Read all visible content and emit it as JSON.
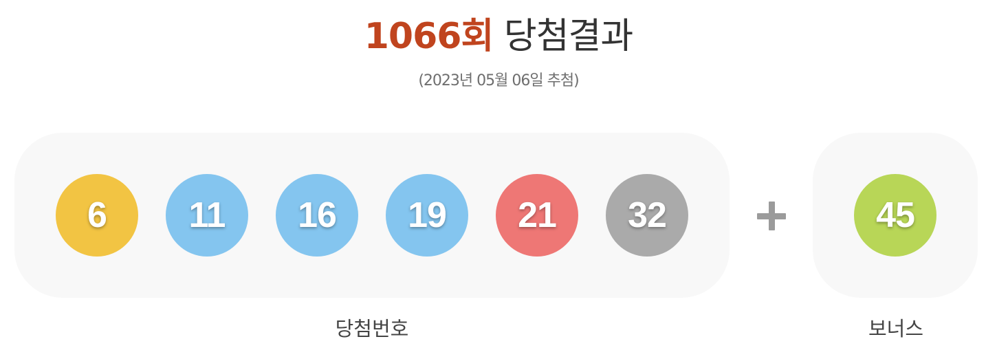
{
  "header": {
    "round": "1066회",
    "title": "당첨결과",
    "draw_date": "(2023년 05월 06일 추첨)"
  },
  "winning_numbers": [
    {
      "number": "6",
      "color": "#f2c443"
    },
    {
      "number": "11",
      "color": "#84c5ef"
    },
    {
      "number": "16",
      "color": "#84c5ef"
    },
    {
      "number": "19",
      "color": "#84c5ef"
    },
    {
      "number": "21",
      "color": "#ee7775"
    },
    {
      "number": "32",
      "color": "#aaaaaa"
    }
  ],
  "bonus_number": {
    "number": "45",
    "color": "#b8d657"
  },
  "separator_icon": "plus-icon",
  "labels": {
    "winning": "당첨번호",
    "bonus": "보너스"
  },
  "colors": {
    "accent": "#c0441e",
    "panel_background": "#f8f8f8"
  }
}
